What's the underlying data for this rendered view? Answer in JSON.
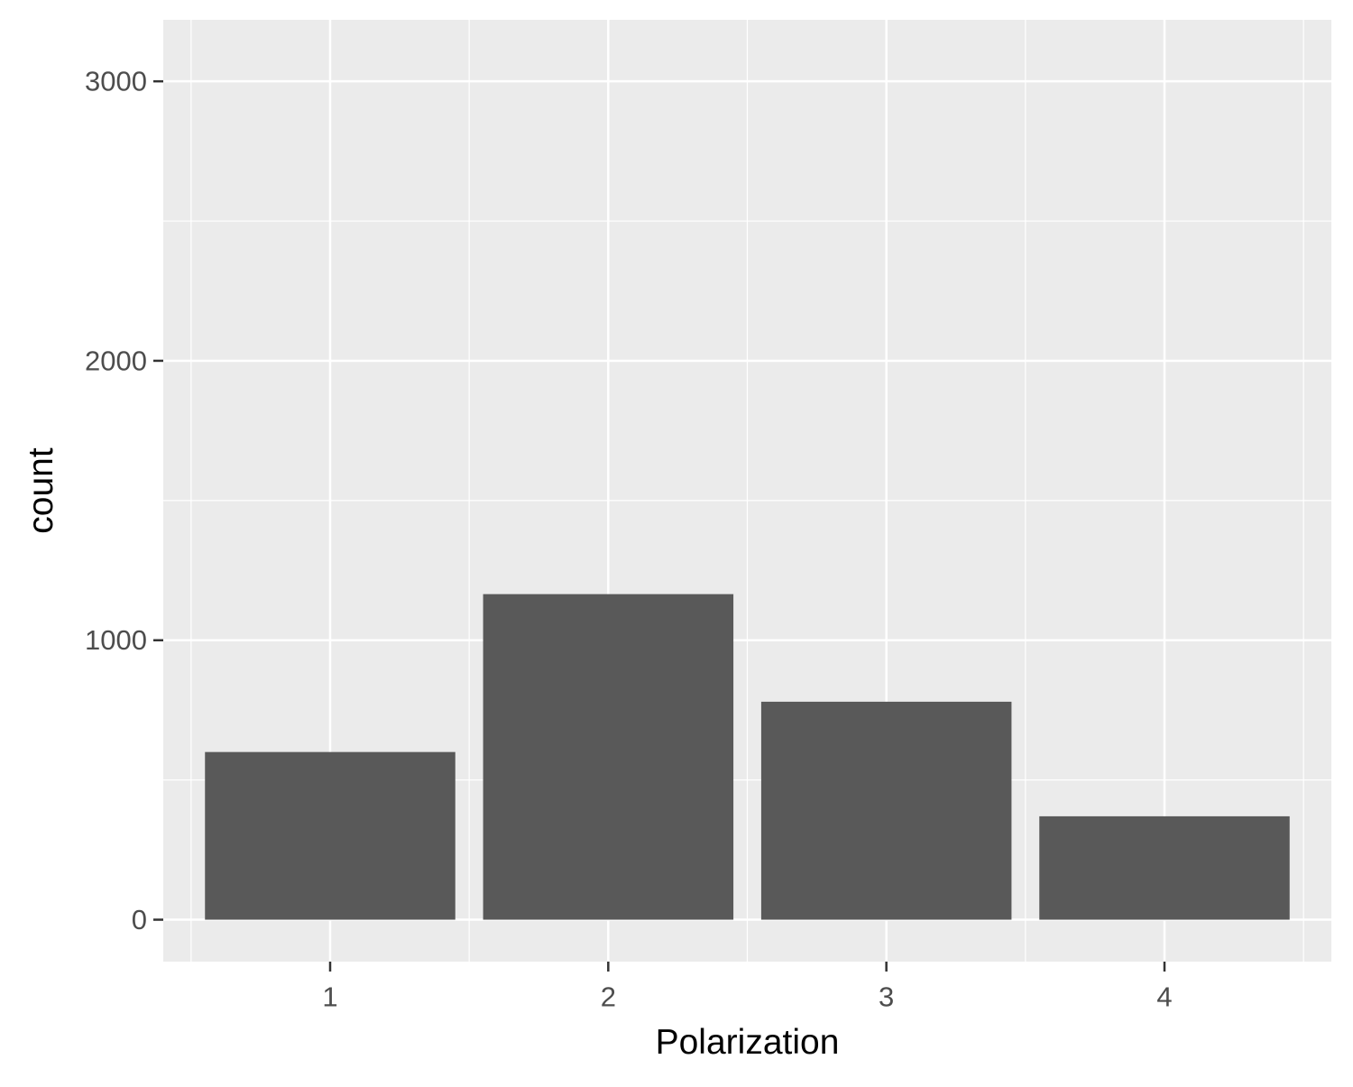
{
  "chart_data": {
    "type": "bar",
    "title": "",
    "xlabel": "Polarization",
    "ylabel": "count",
    "categories": [
      "1",
      "2",
      "3",
      "4"
    ],
    "values": [
      600,
      1165,
      780,
      370
    ],
    "ylim": [
      -150,
      3220
    ],
    "yticks": [
      0,
      1000,
      2000,
      3000
    ],
    "ytick_labels": [
      "0",
      "1000",
      "2000",
      "3000"
    ],
    "grid": true,
    "legend": "none",
    "colors": {
      "panel_background": "#EBEBEB",
      "grid_line": "#FFFFFF",
      "bar_fill": "#595959",
      "tick_label": "#4D4D4D",
      "axis_title": "#000000",
      "tick_mark": "#333333"
    }
  }
}
